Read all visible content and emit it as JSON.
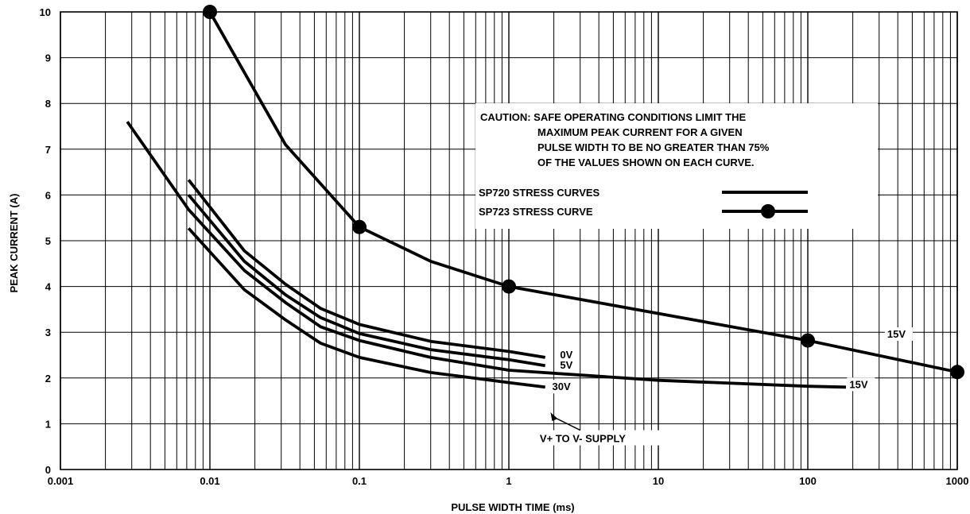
{
  "chart_data": {
    "type": "line",
    "x_scale": "log",
    "y_scale": "linear",
    "xlim": [
      0.001,
      1000
    ],
    "ylim": [
      0,
      10
    ],
    "grid": true,
    "xlabel": "PULSE WIDTH TIME (ms)",
    "ylabel": "PEAK CURRENT (A)",
    "x_ticks": [
      "0.001",
      "0.01",
      "0.1",
      "1",
      "10",
      "100",
      "1000"
    ],
    "y_ticks": [
      "0",
      "1",
      "2",
      "3",
      "4",
      "5",
      "6",
      "7",
      "8",
      "9",
      "10"
    ],
    "caution": [
      "CAUTION:  SAFE OPERATING CONDITIONS LIMIT THE",
      "MAXIMUM PEAK CURRENT FOR A GIVEN",
      "PULSE WIDTH TO BE NO GREATER THAN 75%",
      "OF THE VALUES SHOWN ON EACH CURVE."
    ],
    "legend": [
      {
        "label": "SP720 STRESS CURVES",
        "style": "line"
      },
      {
        "label": "SP723 STRESS CURVE",
        "style": "line-marker"
      }
    ],
    "series": [
      {
        "name": "0V",
        "family": "SP720",
        "x": [
          0.0072,
          0.017,
          0.032,
          0.055,
          0.1,
          0.3,
          1.0,
          1.75
        ],
        "y": [
          6.33,
          4.78,
          4.05,
          3.52,
          3.17,
          2.8,
          2.58,
          2.45
        ]
      },
      {
        "name": "5V",
        "family": "SP720",
        "x": [
          0.0072,
          0.017,
          0.032,
          0.055,
          0.1,
          0.3,
          1.0,
          1.75
        ],
        "y": [
          6.0,
          4.55,
          3.82,
          3.32,
          2.97,
          2.62,
          2.4,
          2.27
        ]
      },
      {
        "name": "15V",
        "family": "SP720",
        "x": [
          0.0028,
          0.0072,
          0.017,
          0.032,
          0.055,
          0.1,
          0.3,
          1.0,
          10,
          100,
          180
        ],
        "y": [
          7.6,
          5.68,
          4.35,
          3.65,
          3.12,
          2.82,
          2.45,
          2.17,
          1.95,
          1.82,
          1.8
        ]
      },
      {
        "name": "30V",
        "family": "SP720",
        "x": [
          0.0072,
          0.017,
          0.032,
          0.055,
          0.1,
          0.3,
          1.0,
          1.75
        ],
        "y": [
          5.27,
          3.93,
          3.27,
          2.76,
          2.45,
          2.12,
          1.9,
          1.8
        ]
      },
      {
        "name": "15V",
        "family": "SP723",
        "x": [
          0.01,
          0.032,
          0.1,
          0.3,
          1.0,
          100,
          1000
        ],
        "y": [
          10.0,
          7.1,
          5.3,
          4.55,
          4.0,
          2.82,
          2.13
        ],
        "markers": [
          0.01,
          0.1,
          1.0,
          100,
          1000
        ]
      }
    ],
    "curve_labels": [
      {
        "text": "0V",
        "x": 2.2,
        "y": 2.45
      },
      {
        "text": "5V",
        "x": 2.2,
        "y": 2.22
      },
      {
        "text": "30V",
        "x": 1.95,
        "y": 1.75
      },
      {
        "text": "15V",
        "x": 190,
        "y": 1.8
      },
      {
        "text": "15V",
        "x": 340,
        "y": 2.9
      }
    ],
    "annotation": {
      "text": "V+ TO V- SUPPLY",
      "arrow_to": {
        "x": 1.9,
        "y": 1.25
      },
      "x": 3.4,
      "y": 0.65
    }
  }
}
